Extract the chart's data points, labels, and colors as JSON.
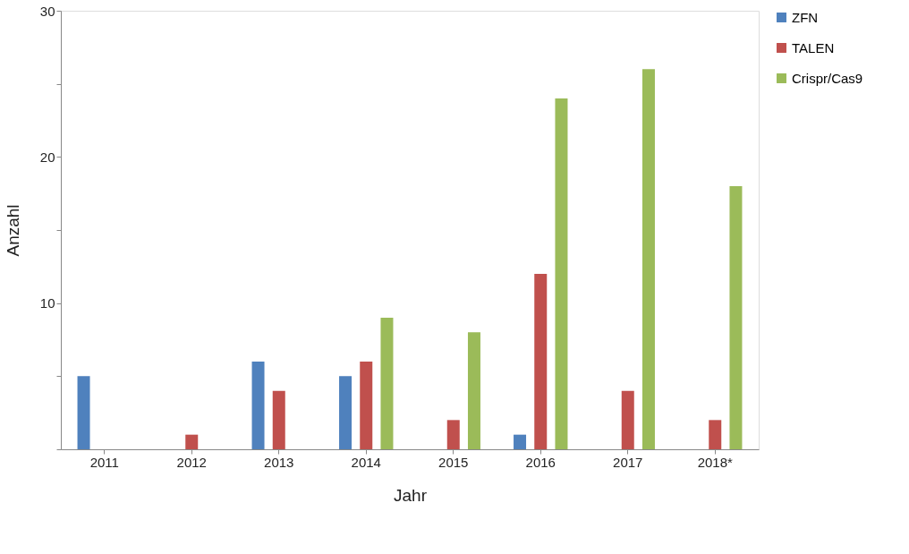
{
  "chart_data": {
    "type": "bar",
    "xlabel": "Jahr",
    "ylabel": "Anzahl",
    "categories": [
      "2011",
      "2012",
      "2013",
      "2014",
      "2015",
      "2016",
      "2017",
      "2018*"
    ],
    "series": [
      {
        "name": "ZFN",
        "color": "#4f81bd",
        "values": [
          5,
          null,
          6,
          5,
          null,
          1,
          null,
          null
        ]
      },
      {
        "name": "TALEN",
        "color": "#c0504d",
        "values": [
          null,
          1,
          4,
          6,
          2,
          12,
          4,
          2
        ]
      },
      {
        "name": "Crispr/Cas9",
        "color": "#9bbb59",
        "values": [
          null,
          null,
          null,
          9,
          8,
          24,
          26,
          18
        ]
      }
    ],
    "ylim": [
      0,
      30
    ],
    "yticks": [
      {
        "value": 0,
        "label": null
      },
      {
        "value": 5,
        "label": null
      },
      10,
      {
        "value": 15,
        "label": null
      },
      20,
      {
        "value": 25,
        "label": null
      },
      30
    ],
    "grid": false,
    "legend": "right"
  }
}
